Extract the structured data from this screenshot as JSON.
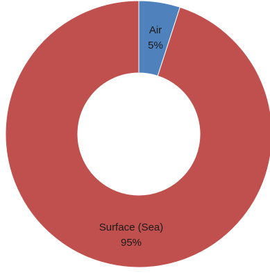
{
  "chart_data": {
    "type": "pie",
    "donut": true,
    "slices": [
      {
        "label": "Air",
        "value": 5,
        "value_label": "5%",
        "color": "#4f81bd"
      },
      {
        "label": "Surface (Sea)",
        "value": 95,
        "value_label": "95%",
        "color": "#c0504d"
      }
    ],
    "start_angle_deg": 0,
    "direction": "clockwise",
    "legend": "none",
    "slice_border_color": "#ffffff"
  }
}
